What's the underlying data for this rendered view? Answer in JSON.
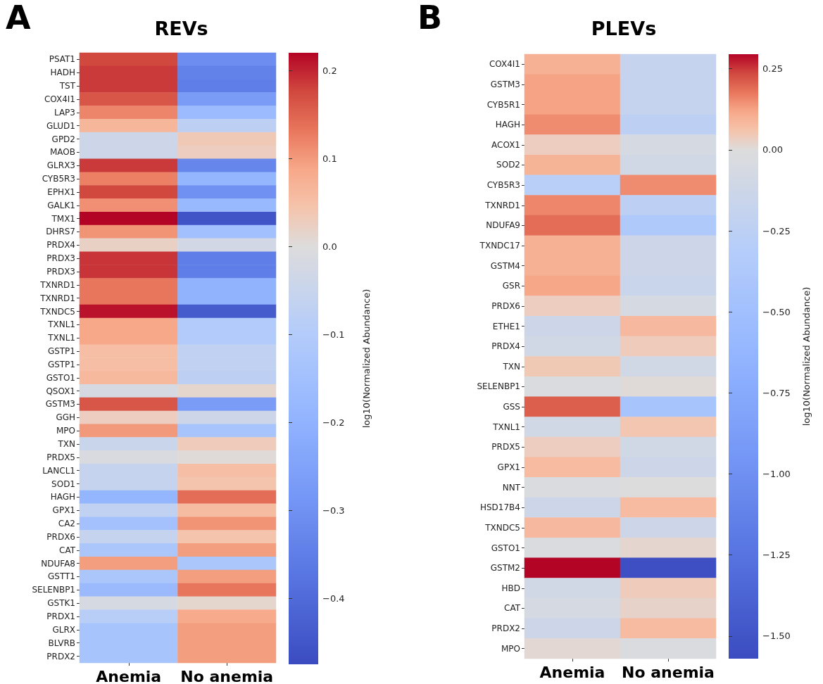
{
  "chart_data": [
    {
      "type": "heatmap",
      "title": "REVs",
      "annotations": [
        "A"
      ],
      "clabel": "log10(Normalized Abundance)",
      "categories": [
        "Anemia",
        "No anemia"
      ],
      "y_categories": [
        "PSAT1",
        "HADH",
        "TST",
        "COX4I1",
        "LAP3",
        "GLUD1",
        "GPD2",
        "MAOB",
        "GLRX3",
        "CYB5R3",
        "EPHX1",
        "GALK1",
        "TMX1",
        "DHRS7",
        "PRDX4",
        "PRDX3",
        "PRDX3",
        "TXNRD1",
        "TXNRD1",
        "TXNDC5",
        "TXNL1",
        "TXNL1",
        "GSTP1",
        "GSTP1",
        "GSTO1",
        "QSOX1",
        "GSTM3",
        "GGH",
        "MPO",
        "TXN",
        "PRDX5",
        "LANCL1",
        "SOD1",
        "HAGH",
        "GPX1",
        "CA2",
        "PRDX6",
        "CAT",
        "NDUFA8",
        "GSTT1",
        "SELENBP1",
        "GSTK1",
        "PRDX1",
        "GLRX",
        "BLVRB",
        "PRDX2"
      ],
      "cells": [
        [
          0.176,
          -0.31
        ],
        [
          0.185,
          -0.34
        ],
        [
          0.185,
          -0.35
        ],
        [
          0.163,
          -0.27
        ],
        [
          0.119,
          -0.17
        ],
        [
          0.066,
          -0.076
        ],
        [
          -0.038,
          0.035
        ],
        [
          -0.038,
          0.026
        ],
        [
          0.185,
          -0.33
        ],
        [
          0.123,
          -0.19
        ],
        [
          0.176,
          -0.3
        ],
        [
          0.11,
          -0.18
        ],
        [
          0.22,
          -0.456
        ],
        [
          0.106,
          -0.15
        ],
        [
          0.022,
          -0.029
        ],
        [
          0.189,
          -0.35
        ],
        [
          0.189,
          -0.35
        ],
        [
          0.132,
          -0.2
        ],
        [
          0.132,
          -0.2
        ],
        [
          0.211,
          -0.437
        ],
        [
          0.088,
          -0.105
        ],
        [
          0.088,
          -0.105
        ],
        [
          0.053,
          -0.067
        ],
        [
          0.053,
          -0.067
        ],
        [
          0.062,
          -0.076
        ],
        [
          -0.019,
          0.013
        ],
        [
          0.163,
          -0.27
        ],
        [
          0.026,
          -0.038
        ],
        [
          0.101,
          -0.133
        ],
        [
          -0.048,
          0.031
        ],
        [
          -0.01,
          0.004
        ],
        [
          -0.057,
          0.053
        ],
        [
          -0.057,
          0.044
        ],
        [
          -0.19,
          0.141
        ],
        [
          -0.067,
          0.057
        ],
        [
          -0.143,
          0.106
        ],
        [
          -0.057,
          0.044
        ],
        [
          -0.124,
          0.097
        ],
        [
          0.097,
          -0.124
        ],
        [
          -0.124,
          0.097
        ],
        [
          -0.171,
          0.132
        ],
        [
          -0.019,
          0.013
        ],
        [
          -0.086,
          0.084
        ],
        [
          -0.133,
          0.097
        ],
        [
          -0.133,
          0.097
        ],
        [
          -0.133,
          0.097
        ]
      ],
      "clim": [
        -0.475,
        0.22
      ],
      "cticks": [
        {
          "value": -0.4,
          "label": "−0.4"
        },
        {
          "value": -0.3,
          "label": "−0.3"
        },
        {
          "value": -0.2,
          "label": "−0.2"
        },
        {
          "value": -0.1,
          "label": "−0.1"
        },
        {
          "value": 0,
          "label": "0.0"
        },
        0.1,
        0.2
      ]
    },
    {
      "type": "heatmap",
      "title": "PLEVs",
      "annotations": [
        "B"
      ],
      "clabel": "log10(Normalized Abundance)",
      "categories": [
        "Anemia",
        "No anemia"
      ],
      "y_categories": [
        "COX4I1",
        "GSTM3",
        "CYB5R1",
        "HAGH",
        "ACOX1",
        "SOD2",
        "CYB5R3",
        "TXNRD1",
        "NDUFA9",
        "TXNDC17",
        "GSTM4",
        "GSR",
        "PRDX6",
        "ETHE1",
        "PRDX4",
        "TXN",
        "SELENBP1",
        "GSS",
        "TXNL1",
        "PRDX5",
        "GPX1",
        "NNT",
        "HSD17B4",
        "TXNDC5",
        "GSTO1",
        "GSTM2",
        "HBD",
        "CAT",
        "PRDX2",
        "MPO"
      ],
      "cells": [
        [
          0.1,
          -0.19
        ],
        [
          0.124,
          -0.19
        ],
        [
          0.124,
          -0.19
        ],
        [
          0.153,
          -0.25
        ],
        [
          0.035,
          -0.063
        ],
        [
          0.094,
          -0.094
        ],
        [
          -0.28,
          0.153
        ],
        [
          0.159,
          -0.25
        ],
        [
          0.189,
          -0.377
        ],
        [
          0.1,
          -0.126
        ],
        [
          0.1,
          -0.126
        ],
        [
          0.118,
          -0.157
        ],
        [
          0.035,
          -0.063
        ],
        [
          -0.126,
          0.083
        ],
        [
          -0.094,
          0.041
        ],
        [
          0.047,
          -0.094
        ],
        [
          -0.031,
          0.006
        ],
        [
          0.207,
          -0.44
        ],
        [
          -0.094,
          0.053
        ],
        [
          0.035,
          -0.094
        ],
        [
          0.077,
          -0.126
        ],
        [
          -0.031,
          0
        ],
        [
          -0.126,
          0.077
        ],
        [
          0.083,
          -0.126
        ],
        [
          -0.031,
          0.018
        ],
        [
          0.295,
          -1.55
        ],
        [
          -0.094,
          0.041
        ],
        [
          -0.063,
          0.024
        ],
        [
          -0.126,
          0.077
        ],
        [
          0.012,
          -0.031
        ]
      ],
      "clim": [
        -1.57,
        0.295
      ],
      "cticks": [
        {
          "value": -1.5,
          "label": "−1.50"
        },
        {
          "value": -1.25,
          "label": "−1.25"
        },
        {
          "value": -1,
          "label": "−1.00"
        },
        {
          "value": -0.75,
          "label": "−0.75"
        },
        {
          "value": -0.5,
          "label": "−0.50"
        },
        {
          "value": -0.25,
          "label": "−0.25"
        },
        {
          "value": 0,
          "label": "0.00"
        },
        0.25
      ]
    }
  ]
}
